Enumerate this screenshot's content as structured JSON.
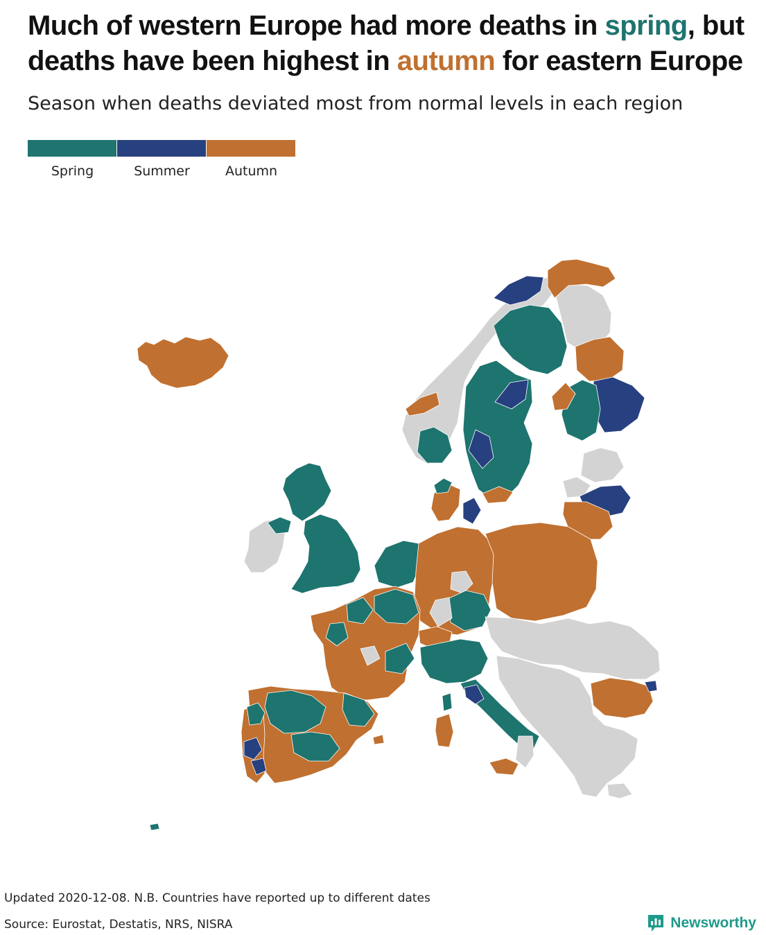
{
  "title": {
    "part1": "Much of western Europe had more deaths in ",
    "spring_word": "spring",
    "part2": ", but deaths have been highest in ",
    "autumn_word": "autumn",
    "part3": " for eastern Europe"
  },
  "subtitle": "Season when deaths deviated most from normal levels in each region",
  "legend": [
    {
      "label": "Spring",
      "color": "#1e746f"
    },
    {
      "label": "Summer",
      "color": "#27407f"
    },
    {
      "label": "Autumn",
      "color": "#c07030"
    }
  ],
  "colors": {
    "no_data": "#d3d3d3",
    "spring": "#1e746f",
    "summer": "#27407f",
    "autumn": "#c07030",
    "brand": "#1e9a8a"
  },
  "footer": {
    "updated": "Updated 2020-12-08. N.B. Countries have reported up to different dates",
    "source": "Source: Eurostat, Destatis, NRS, NISRA"
  },
  "brand": {
    "name": "Newsworthy",
    "icon": "bar-chart-speech-icon"
  }
}
